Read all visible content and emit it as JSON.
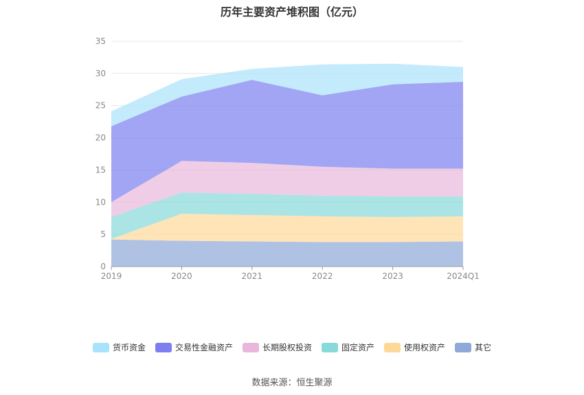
{
  "chart_data": {
    "type": "area",
    "stacked": true,
    "title": "历年主要资产堆积图（亿元）",
    "categories": [
      "2019",
      "2020",
      "2021",
      "2022",
      "2023",
      "2024Q1"
    ],
    "ylim": [
      0,
      35
    ],
    "yticks": [
      0,
      5,
      10,
      15,
      20,
      25,
      30,
      35
    ],
    "grid": true,
    "legend_position": "bottom",
    "series": [
      {
        "name": "其它",
        "color": "#8fa8d8",
        "values": [
          4.2,
          4.0,
          3.9,
          3.8,
          3.8,
          3.9
        ]
      },
      {
        "name": "使用权资产",
        "color": "#fdd999",
        "values": [
          0.1,
          4.2,
          4.1,
          4.0,
          3.9,
          3.9
        ]
      },
      {
        "name": "固定资产",
        "color": "#88d9d9",
        "values": [
          3.4,
          3.3,
          3.3,
          3.2,
          3.2,
          3.1
        ]
      },
      {
        "name": "长期股权投资",
        "color": "#e8b8dc",
        "values": [
          2.3,
          4.9,
          4.8,
          4.5,
          4.3,
          4.3
        ]
      },
      {
        "name": "交易性金融资产",
        "color": "#7b7ff0",
        "values": [
          11.8,
          10.0,
          12.9,
          11.1,
          13.1,
          13.5
        ]
      },
      {
        "name": "货币资金",
        "color": "#a9e3fb",
        "values": [
          2.3,
          2.7,
          1.7,
          4.8,
          3.2,
          2.3
        ]
      }
    ]
  },
  "footer": {
    "source": "数据来源：恒生聚源"
  }
}
